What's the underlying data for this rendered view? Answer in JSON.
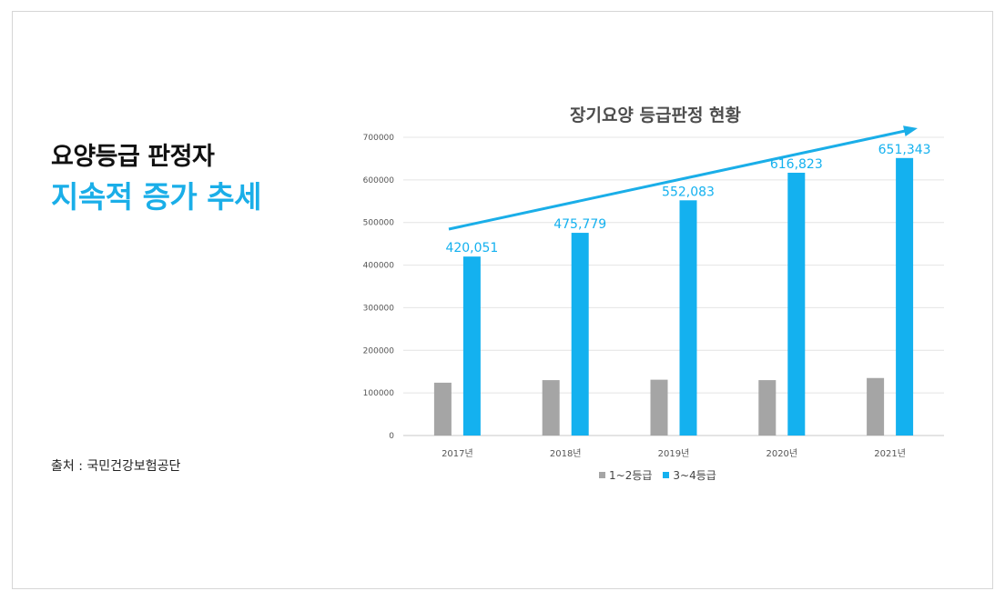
{
  "headline": {
    "line1": "요양등급 판정자",
    "line2": "지속적 증가 추세"
  },
  "source": "출처 : 국민건강보험공단",
  "colors": {
    "series_a": "#a5a5a5",
    "series_b": "#14b1ef",
    "accent_text": "#1aaee8",
    "trend_arrow": "#1aaee8"
  },
  "chart_data": {
    "type": "bar",
    "title": "장기요양 등급판정 현황",
    "xlabel": "",
    "ylabel": "",
    "categories": [
      "2017년",
      "2018년",
      "2019년",
      "2020년",
      "2021년"
    ],
    "series": [
      {
        "name": "1~2등급",
        "values": [
          124000,
          130000,
          131000,
          130000,
          135000
        ]
      },
      {
        "name": "3~4등급",
        "values": [
          420051,
          475779,
          552083,
          616823,
          651343
        ]
      }
    ],
    "data_labels": [
      "420,051",
      "475,779",
      "552,083",
      "616,823",
      "651,343"
    ],
    "ylim": [
      0,
      700000
    ],
    "yticks": [
      "0",
      "100000",
      "200000",
      "300000",
      "400000",
      "500000",
      "600000",
      "700000"
    ],
    "grid": true,
    "legend_position": "bottom",
    "annotation": "upward trend arrow"
  }
}
